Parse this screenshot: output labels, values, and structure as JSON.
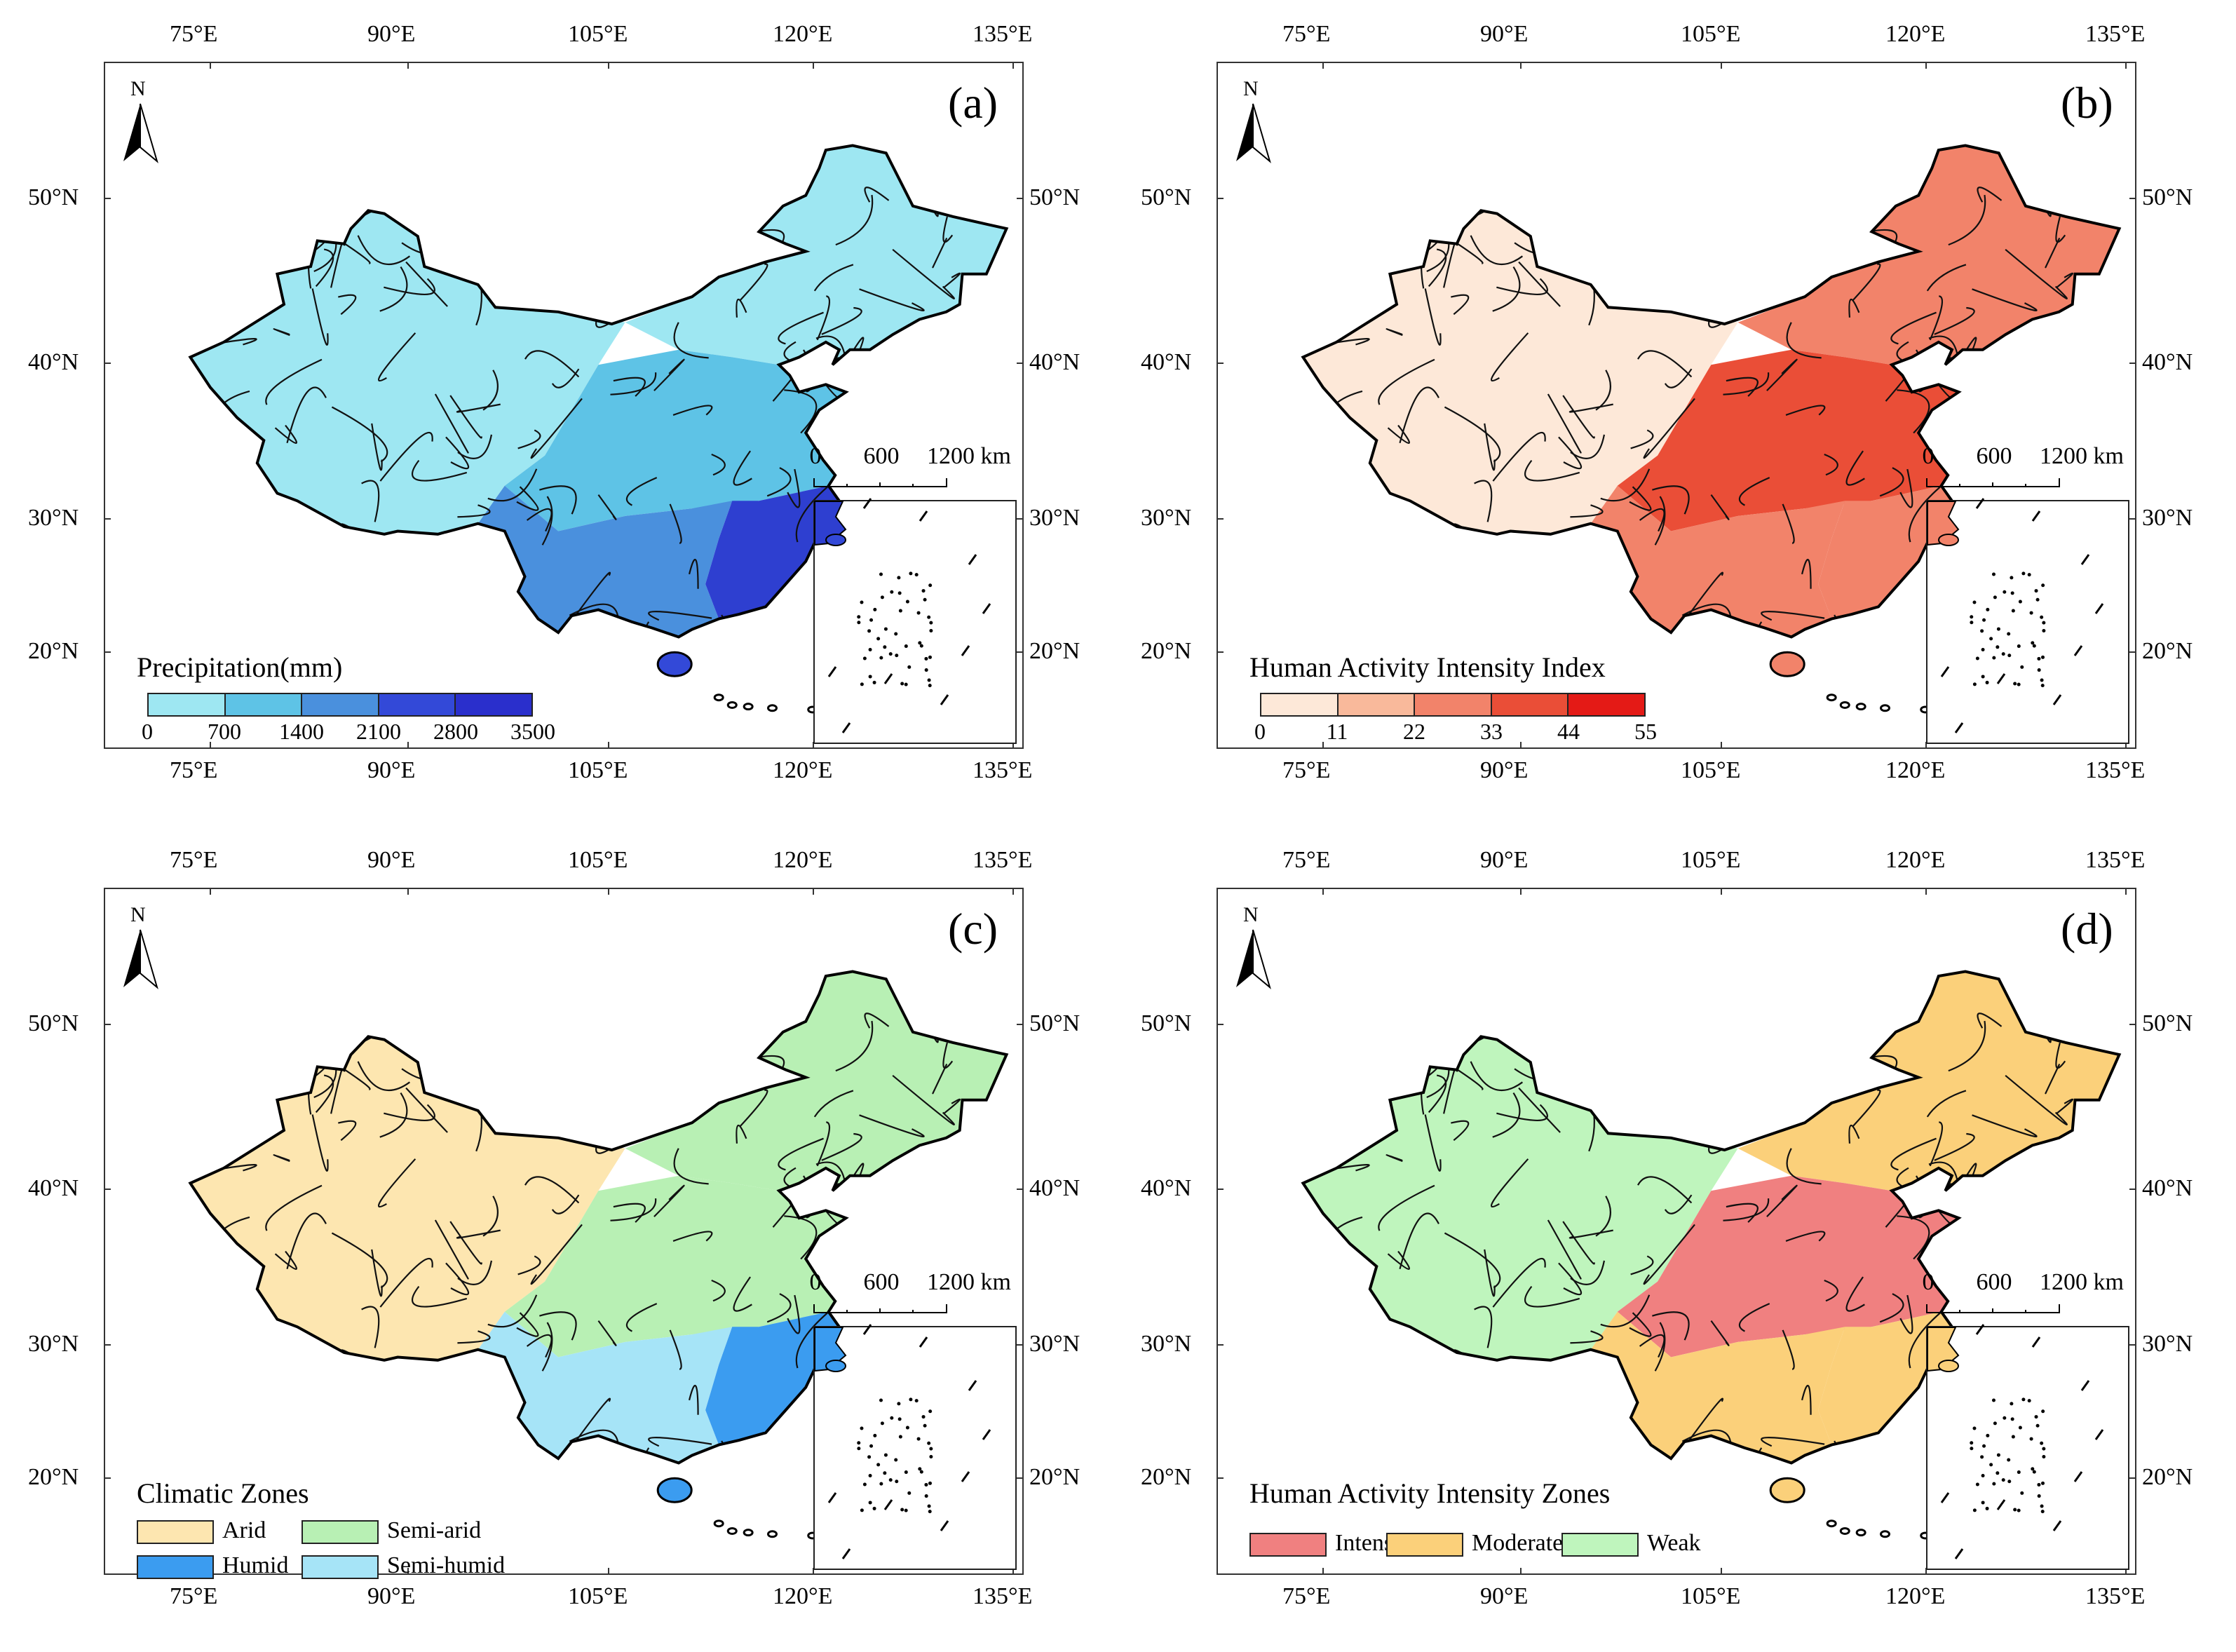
{
  "lon_ticks": [
    "75°E",
    "90°E",
    "105°E",
    "120°E",
    "135°E"
  ],
  "lat_ticks": [
    "50°N",
    "40°N",
    "30°N",
    "20°N"
  ],
  "north_label": "N",
  "scale": {
    "labels": [
      "0",
      "600",
      "1200 km"
    ]
  },
  "panels": [
    {
      "id": "a",
      "label": "(a)",
      "legend_type": "colorbar",
      "legend_title": "Precipitation(mm)",
      "colorbar_labels": [
        "0",
        "700",
        "1400",
        "2100",
        "2800",
        "3500"
      ],
      "colors": [
        "#9ee7f2",
        "#5ec3e6",
        "#4a90dd",
        "#3349d8",
        "#2a2fcc",
        "#1a148e"
      ],
      "map_colors": {
        "nw": "#9ee7f2",
        "ne": "#9ee7f2",
        "central": "#5ec3e6",
        "se": "#2e3fd0",
        "south": "#4a90dd",
        "hainan": "#3349d8",
        "taiwan": "#3349d8"
      }
    },
    {
      "id": "b",
      "label": "(b)",
      "legend_type": "colorbar",
      "legend_title": "Human Activity Intensity Index",
      "colorbar_labels": [
        "0",
        "11",
        "22",
        "33",
        "44",
        "55"
      ],
      "colors": [
        "#fde8d8",
        "#f9b99b",
        "#f2836a",
        "#ea4e37",
        "#e41a16"
      ],
      "map_colors": {
        "nw": "#fde8d8",
        "ne": "#f2836a",
        "central": "#ea4e37",
        "se": "#f2836a",
        "south": "#f2836a",
        "hainan": "#f2836a",
        "taiwan": "#ea4e37"
      }
    },
    {
      "id": "c",
      "label": "(c)",
      "legend_type": "categorical",
      "legend_title": "Climatic Zones",
      "categories": [
        {
          "label": "Arid",
          "color": "#fde6b0"
        },
        {
          "label": "Semi-arid",
          "color": "#b8f0b4"
        },
        {
          "label": "Humid",
          "color": "#3b9cf0"
        },
        {
          "label": "Semi-humid",
          "color": "#a6e4f7"
        }
      ],
      "map_colors": {
        "nw": "#fde6b0",
        "ne": "#b8f0b4",
        "central": "#b8f0b4",
        "se": "#3b9cf0",
        "south": "#a6e4f7",
        "hainan": "#3b9cf0",
        "taiwan": "#3b9cf0"
      }
    },
    {
      "id": "d",
      "label": "(d)",
      "legend_type": "categorical",
      "legend_title": "Human Activity Intensity Zones",
      "categories": [
        {
          "label": "Intense",
          "color": "#f08080"
        },
        {
          "label": "Moderate",
          "color": "#fbd07a"
        },
        {
          "label": "Weak",
          "color": "#bff5bd"
        }
      ],
      "map_colors": {
        "nw": "#bff5bd",
        "ne": "#fbd07a",
        "central": "#f08080",
        "se": "#fbd07a",
        "south": "#fbd07a",
        "hainan": "#fbd07a",
        "taiwan": "#f08080"
      }
    }
  ]
}
